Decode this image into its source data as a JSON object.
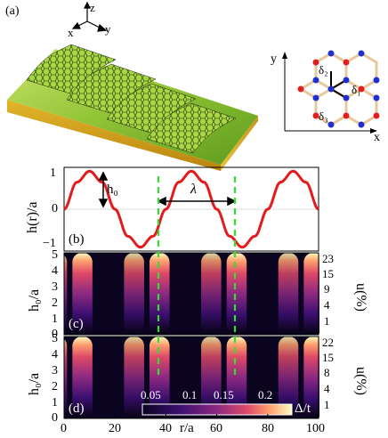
{
  "figure": {
    "panel_a_label": "(a)",
    "panel_b_label": "(b)",
    "panel_c_label": "(c)",
    "panel_d_label": "(d)",
    "axes3d": {
      "z": "z",
      "x": "x",
      "y": "y"
    },
    "lattice": {
      "axis_x": "x",
      "axis_y": "y",
      "delta1": "δ₁",
      "delta2": "δ₂",
      "delta3": "δ₃"
    },
    "panel_b": {
      "ylabel": "h(r)/a",
      "ytick_labels": [
        "1",
        "0",
        "−1"
      ],
      "amplitude_label": "h₀",
      "wavelength_label": "λ"
    },
    "panel_c": {
      "ylabel": "h₀/a",
      "ytick_labels": [
        "5",
        "4",
        "3",
        "2",
        "1",
        "0"
      ],
      "right_label": "u(%)",
      "right_tick_labels": [
        "23",
        "15",
        "9",
        "4",
        "1"
      ]
    },
    "panel_d": {
      "ylabel": "h₀/a",
      "ytick_labels": [
        "5",
        "4",
        "3",
        "2",
        "1",
        "0"
      ],
      "right_label": "u(%)",
      "right_tick_labels": [
        "22",
        "15",
        "8",
        "4",
        "1"
      ],
      "colorbar_tick_labels": [
        "0.05",
        "0.1",
        "0.15",
        "0.2"
      ],
      "colorbar_label": "Δ/t"
    },
    "xaxis": {
      "label": "r/a",
      "tick_labels": [
        "0",
        "20",
        "40",
        "60",
        "80",
        "100"
      ]
    },
    "colors": {
      "curve": "#e41a1c",
      "dashed": "#33dd33",
      "sheet_top": "#9acd32",
      "sheet_side": "#d4a017",
      "atom_red": "#e02020",
      "atom_blue": "#2030d0",
      "bond": "#e8c89a"
    }
  },
  "chart_data": [
    {
      "type": "line",
      "title": "",
      "xlabel": "r/a",
      "ylabel": "h(r)/a",
      "xlim": [
        0,
        100
      ],
      "ylim": [
        -1.1,
        1.1
      ],
      "series": [
        {
          "x": [
            0,
            5,
            10,
            15,
            20,
            25,
            30,
            35,
            40,
            45,
            50,
            55,
            60,
            65,
            70,
            75,
            80,
            85,
            90,
            95,
            100
          ],
          "values": [
            0,
            0.71,
            1,
            0.71,
            0,
            -0.71,
            -1,
            -0.71,
            0,
            0.71,
            1,
            0.71,
            0,
            -0.71,
            -1,
            -0.71,
            0,
            0.71,
            1,
            0.71,
            0
          ]
        }
      ],
      "annotations": [
        "h₀",
        "λ"
      ]
    },
    {
      "type": "heatmap",
      "title": "",
      "xlabel": "r/a",
      "ylabel": "h₀/a",
      "xlim": [
        0,
        100
      ],
      "ylim": [
        0,
        5
      ]
    },
    {
      "type": "heatmap",
      "title": "",
      "xlabel": "r/a",
      "ylabel": "h₀/a",
      "xlim": [
        0,
        100
      ],
      "ylim": [
        0,
        5
      ],
      "colorbar": {
        "label": "Δ/t",
        "ticks": [
          0.05,
          0.1,
          0.15,
          0.2
        ]
      }
    }
  ]
}
